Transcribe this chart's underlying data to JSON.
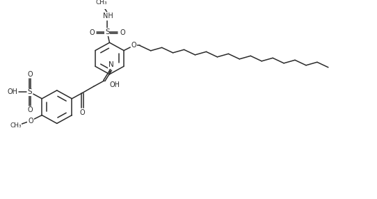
{
  "bg_color": "#ffffff",
  "line_color": "#2a2a2a",
  "line_width": 1.1,
  "figsize": [
    5.42,
    2.86
  ],
  "dpi": 100,
  "xlim": [
    0,
    10.0
  ],
  "ylim": [
    0,
    5.28
  ]
}
